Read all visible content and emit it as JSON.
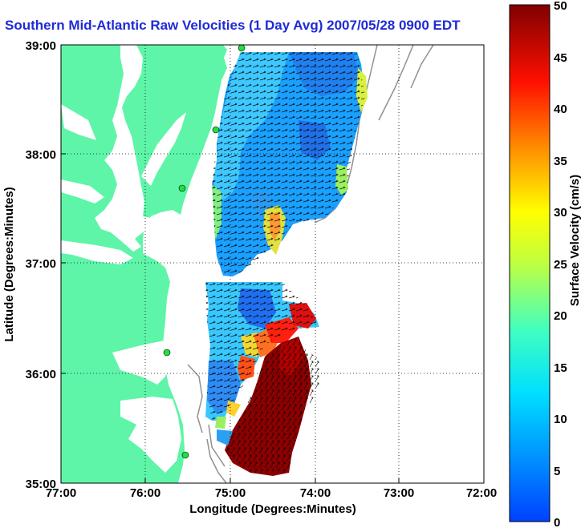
{
  "title": "Southern Mid-Atlantic Raw Velocities (1 Day Avg) 2007/05/28 0900 EDT",
  "map": {
    "xlabel": "Longitude (Degrees:Minutes)",
    "ylabel": "Latitude (Degrees:Minutes)",
    "x_ticks": [
      "77:00",
      "76:00",
      "75:00",
      "74:00",
      "73:00",
      "72:00"
    ],
    "y_ticks": [
      "39:00",
      "38:00",
      "37:00",
      "36:00",
      "35:00"
    ],
    "grid": "dotted",
    "land_color": "#5ef5a8",
    "ocean_color": "#ffffff"
  },
  "colorbar": {
    "label": "Surface Velocity (cm/s)",
    "unit": "cm/s",
    "ticks": [
      "50",
      "45",
      "40",
      "35",
      "30",
      "25",
      "20",
      "15",
      "10",
      "5",
      "0"
    ],
    "range": [
      0,
      50
    ],
    "colormap": "jet"
  }
}
